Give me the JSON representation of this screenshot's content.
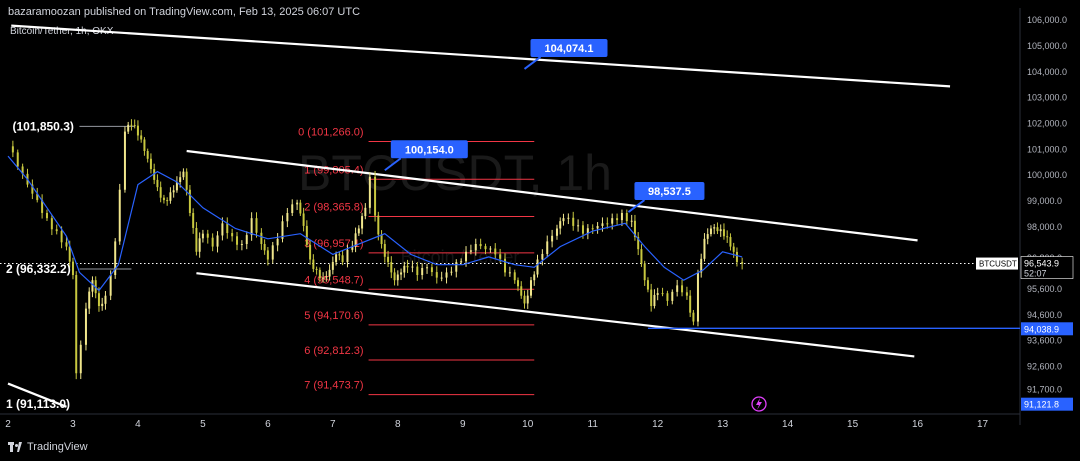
{
  "header": {
    "publisher_line": "bazaramoozan published on TradingView.com, Feb 13, 2025 06:07 UTC",
    "symbol_line": "Bitcoin/Tether, 1h, OKX"
  },
  "watermark": {
    "symbol": "BTCUSDT, 1h",
    "name": "Bitcoin / Tether"
  },
  "footer": {
    "brand": "TradingView"
  },
  "colors": {
    "background": "#000000",
    "up_candle": "#f0e68c",
    "down_candle": "#c8c840",
    "moving_average": "#2962ff",
    "fib_line": "#f23645",
    "fib_text": "#f23645",
    "callout": "#2962ff",
    "current_price_badge": "#ffffff",
    "support_line": "#2962ff"
  },
  "chart_data": {
    "type": "candlestick",
    "symbol": "BTCUSDT",
    "interval": "1h",
    "exchange": "OKX",
    "y_axis": {
      "range": [
        90800,
        106200
      ],
      "tick_labels": [
        "106,000.0",
        "105,000.0",
        "104,000.0",
        "103,000.0",
        "102,000.0",
        "101,000.0",
        "100,000.0",
        "99,000.0",
        "98,000.0",
        "96,800.0",
        "95,600.0",
        "94,600.0",
        "93,600.0",
        "92,600.0",
        "91,700.0"
      ],
      "tick_values": [
        106000,
        105000,
        104000,
        103000,
        102000,
        101000,
        100000,
        99000,
        98000,
        96800,
        95600,
        94600,
        93600,
        92600,
        91700
      ]
    },
    "x_axis": {
      "tick_labels": [
        "2",
        "3",
        "4",
        "5",
        "6",
        "7",
        "8",
        "9",
        "10",
        "11",
        "12",
        "13",
        "14",
        "15",
        "16",
        "17"
      ],
      "tick_values": [
        2,
        3,
        4,
        5,
        6,
        7,
        8,
        9,
        10,
        11,
        12,
        13,
        14,
        15,
        16,
        17
      ],
      "range": [
        2,
        17.7
      ]
    },
    "current_price": {
      "symbol": "BTCUSDT",
      "value": "96,543.9",
      "countdown": "52:07",
      "level": 96543.9
    },
    "price_badges": [
      {
        "label": "94,038.9",
        "level": 94038.9
      },
      {
        "label": "91,121.8",
        "level": 91121.8
      }
    ],
    "fibonacci": {
      "x_start": 7.55,
      "x_end": 10.1,
      "levels": [
        {
          "label": "0 (101,266.0)",
          "value": 101266.0
        },
        {
          "label": "1 (99,805.4)",
          "value": 99805.4
        },
        {
          "label": "2 (98,365.8)",
          "value": 98365.8
        },
        {
          "label": "3 (96,957.1)",
          "value": 96957.1
        },
        {
          "label": "4 (95,548.7)",
          "value": 95548.7
        },
        {
          "label": "5 (94,170.6)",
          "value": 94170.6
        },
        {
          "label": "6 (92,812.3)",
          "value": 92812.3
        },
        {
          "label": "7 (91,473.7)",
          "value": 91473.7
        }
      ]
    },
    "left_annotations": [
      {
        "label": "(101,850.3)",
        "x": 2.1,
        "y": 101850.3
      },
      {
        "label": "2 (96,332.2)",
        "x": 2.0,
        "y": 96332.2
      },
      {
        "label": "1 (91,113.0)",
        "x": 2.0,
        "y": 91113.0
      }
    ],
    "callouts": [
      {
        "label": "104,074.1",
        "x": 9.95,
        "y": 104074.1
      },
      {
        "label": "100,154.0",
        "x": 7.8,
        "y": 100154.0
      },
      {
        "label": "98,537.5",
        "x": 11.55,
        "y": 98537.5
      }
    ],
    "trend_lines": [
      {
        "name": "upper-long-trendline",
        "from": [
          2.05,
          105750
        ],
        "to": [
          16.5,
          103400
        ]
      },
      {
        "name": "channel-upper",
        "from": [
          4.75,
          100900
        ],
        "to": [
          16.0,
          97440
        ]
      },
      {
        "name": "channel-lower",
        "from": [
          4.9,
          96170
        ],
        "to": [
          15.95,
          92950
        ]
      },
      {
        "name": "bottom-left-trendline",
        "from": [
          2.0,
          91900
        ],
        "to": [
          2.9,
          91000
        ]
      },
      {
        "name": "left-horizontal-level",
        "from": [
          3.1,
          101850
        ],
        "to": [
          3.95,
          101850
        ]
      },
      {
        "name": "left-horizontal-level-2",
        "from": [
          3.1,
          96332
        ],
        "to": [
          3.9,
          96332
        ]
      }
    ],
    "support_line": {
      "from": [
        11.85,
        94038.9
      ],
      "to": [
        17.7,
        94038.9
      ]
    },
    "closes": [
      [
        2.0,
        101080
      ],
      [
        2.15,
        100300
      ],
      [
        2.3,
        99600
      ],
      [
        2.45,
        99000
      ],
      [
        2.6,
        98300
      ],
      [
        2.75,
        97800
      ],
      [
        2.9,
        97200
      ],
      [
        3.0,
        96100
      ],
      [
        3.05,
        92300
      ],
      [
        3.12,
        93400
      ],
      [
        3.2,
        94800
      ],
      [
        3.3,
        95900
      ],
      [
        3.4,
        94900
      ],
      [
        3.5,
        95300
      ],
      [
        3.58,
        96100
      ],
      [
        3.65,
        97400
      ],
      [
        3.72,
        99400
      ],
      [
        3.8,
        101650
      ],
      [
        3.9,
        101900
      ],
      [
        4.0,
        101500
      ],
      [
        4.1,
        100900
      ],
      [
        4.2,
        100200
      ],
      [
        4.3,
        99500
      ],
      [
        4.4,
        99000
      ],
      [
        4.5,
        99300
      ],
      [
        4.6,
        99700
      ],
      [
        4.7,
        100100
      ],
      [
        4.8,
        98500
      ],
      [
        4.9,
        97000
      ],
      [
        5.0,
        97700
      ],
      [
        5.15,
        97200
      ],
      [
        5.3,
        98100
      ],
      [
        5.45,
        97600
      ],
      [
        5.6,
        97300
      ],
      [
        5.75,
        98300
      ],
      [
        5.9,
        97300
      ],
      [
        6.0,
        96700
      ],
      [
        6.15,
        97500
      ],
      [
        6.3,
        98500
      ],
      [
        6.45,
        98900
      ],
      [
        6.55,
        98000
      ],
      [
        6.65,
        96700
      ],
      [
        6.75,
        96300
      ],
      [
        6.85,
        96000
      ],
      [
        6.95,
        96300
      ],
      [
        7.05,
        96900
      ],
      [
        7.15,
        96600
      ],
      [
        7.3,
        97200
      ],
      [
        7.4,
        97900
      ],
      [
        7.5,
        98700
      ],
      [
        7.57,
        99900
      ],
      [
        7.65,
        98400
      ],
      [
        7.75,
        97300
      ],
      [
        7.85,
        96600
      ],
      [
        7.95,
        95900
      ],
      [
        8.05,
        96200
      ],
      [
        8.15,
        96400
      ],
      [
        8.3,
        96100
      ],
      [
        8.45,
        96400
      ],
      [
        8.6,
        96000
      ],
      [
        8.75,
        96200
      ],
      [
        8.9,
        96600
      ],
      [
        9.05,
        97000
      ],
      [
        9.2,
        97300
      ],
      [
        9.35,
        97100
      ],
      [
        9.5,
        96900
      ],
      [
        9.65,
        96200
      ],
      [
        9.8,
        95900
      ],
      [
        9.9,
        95300
      ],
      [
        9.95,
        95000
      ],
      [
        10.05,
        95900
      ],
      [
        10.15,
        96700
      ],
      [
        10.3,
        97400
      ],
      [
        10.45,
        97900
      ],
      [
        10.55,
        98300
      ],
      [
        10.7,
        98000
      ],
      [
        10.85,
        97700
      ],
      [
        11.0,
        97900
      ],
      [
        11.15,
        98100
      ],
      [
        11.3,
        98300
      ],
      [
        11.45,
        98500
      ],
      [
        11.6,
        98200
      ],
      [
        11.7,
        97100
      ],
      [
        11.8,
        95900
      ],
      [
        11.9,
        94900
      ],
      [
        12.0,
        95400
      ],
      [
        12.15,
        95100
      ],
      [
        12.3,
        95700
      ],
      [
        12.45,
        95300
      ],
      [
        12.55,
        94300
      ],
      [
        12.62,
        96200
      ],
      [
        12.72,
        97500
      ],
      [
        12.82,
        97900
      ],
      [
        12.92,
        97800
      ],
      [
        13.02,
        97600
      ],
      [
        13.12,
        97200
      ],
      [
        13.22,
        96600
      ],
      [
        13.3,
        96543.9
      ]
    ],
    "moving_average": [
      [
        2.0,
        100700
      ],
      [
        2.3,
        99800
      ],
      [
        2.6,
        98700
      ],
      [
        2.9,
        97600
      ],
      [
        3.1,
        96200
      ],
      [
        3.4,
        95500
      ],
      [
        3.7,
        96500
      ],
      [
        4.0,
        99600
      ],
      [
        4.3,
        100100
      ],
      [
        4.6,
        99700
      ],
      [
        5.0,
        98700
      ],
      [
        5.5,
        97900
      ],
      [
        6.0,
        97500
      ],
      [
        6.5,
        97700
      ],
      [
        7.0,
        96900
      ],
      [
        7.5,
        97400
      ],
      [
        7.8,
        97700
      ],
      [
        8.2,
        96900
      ],
      [
        8.6,
        96500
      ],
      [
        9.0,
        96500
      ],
      [
        9.4,
        96800
      ],
      [
        9.8,
        96500
      ],
      [
        10.1,
        96400
      ],
      [
        10.5,
        97200
      ],
      [
        11.0,
        97800
      ],
      [
        11.5,
        98100
      ],
      [
        11.8,
        97200
      ],
      [
        12.1,
        96400
      ],
      [
        12.4,
        95900
      ],
      [
        12.7,
        96300
      ],
      [
        13.0,
        97000
      ],
      [
        13.3,
        96800
      ]
    ]
  }
}
